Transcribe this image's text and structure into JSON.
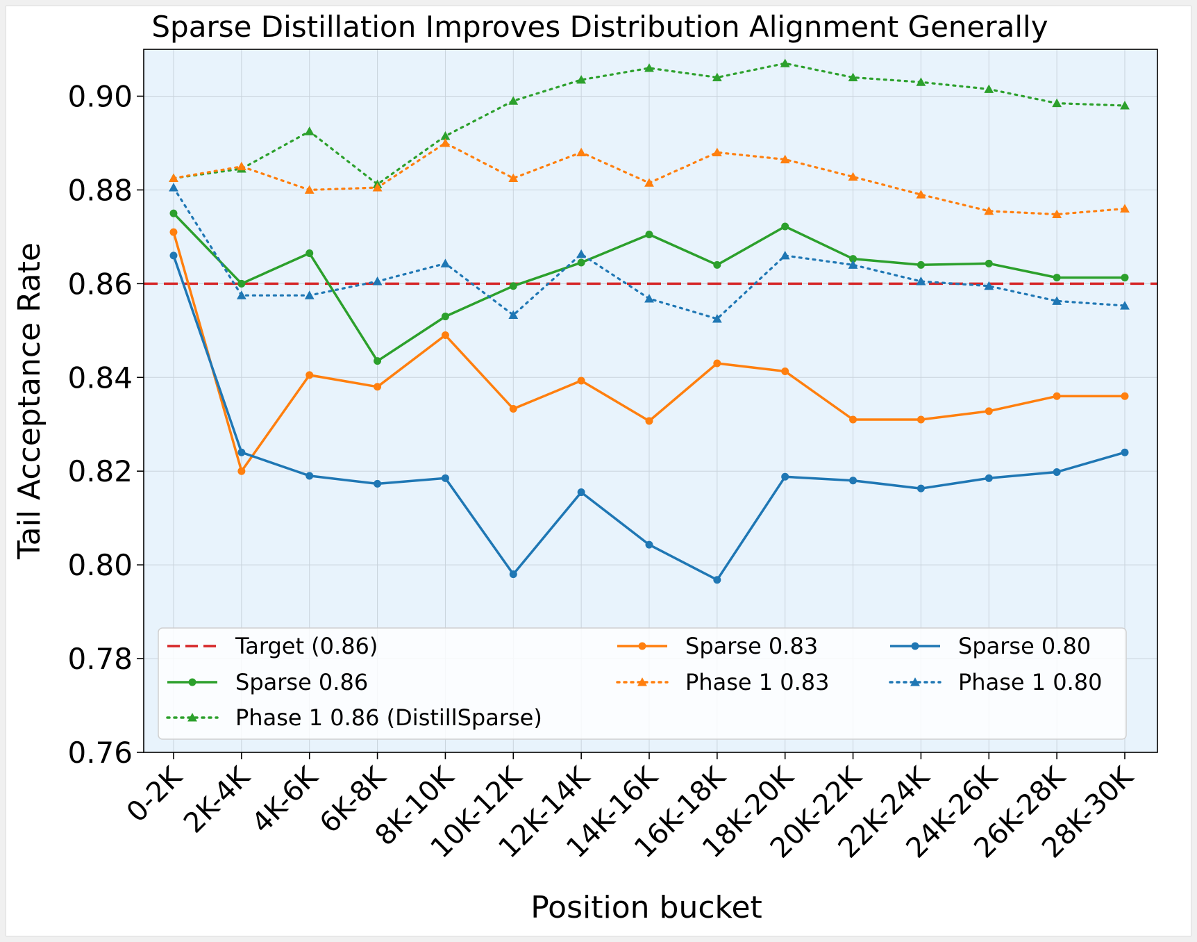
{
  "chart_data": {
    "type": "line",
    "title": "Sparse Distillation Improves Distribution Alignment Generally",
    "xlabel": "Position bucket",
    "ylabel": "Tail Acceptance Rate",
    "ylim": [
      0.76,
      0.91
    ],
    "yticks": [
      "0.76",
      "0.78",
      "0.80",
      "0.82",
      "0.84",
      "0.86",
      "0.88",
      "0.90"
    ],
    "grid": true,
    "legend_placement": "lower center, 3 columns",
    "categories": [
      "0-2K",
      "2K-4K",
      "4K-6K",
      "6K-8K",
      "8K-10K",
      "10K-12K",
      "12K-14K",
      "14K-16K",
      "16K-18K",
      "18K-20K",
      "20K-22K",
      "22K-24K",
      "24K-26K",
      "26K-28K",
      "28K-30K"
    ],
    "target": {
      "name": "Target (0.86)",
      "value": 0.86,
      "color": "#d62728",
      "style": "dashed"
    },
    "series": [
      {
        "name": "Sparse 0.86",
        "color": "#2ca02c",
        "style": "solid",
        "marker": "circle",
        "values": [
          0.875,
          0.86,
          0.8665,
          0.8435,
          0.853,
          0.8595,
          0.8645,
          0.8705,
          0.864,
          0.8722,
          0.8653,
          0.864,
          0.8643,
          0.8613,
          0.8613
        ]
      },
      {
        "name": "Phase 1 0.86 (DistillSparse)",
        "color": "#2ca02c",
        "style": "dotted",
        "marker": "triangle",
        "values": [
          0.8825,
          0.8845,
          0.8925,
          0.8812,
          0.8915,
          0.899,
          0.9035,
          0.906,
          0.904,
          0.907,
          0.904,
          0.903,
          0.9015,
          0.8985,
          0.898
        ]
      },
      {
        "name": "Sparse 0.83",
        "color": "#ff7f0e",
        "style": "solid",
        "marker": "circle",
        "values": [
          0.871,
          0.82,
          0.8405,
          0.838,
          0.849,
          0.8333,
          0.8393,
          0.8307,
          0.843,
          0.8413,
          0.831,
          0.831,
          0.8328,
          0.836,
          0.836
        ]
      },
      {
        "name": "Phase 1 0.83",
        "color": "#ff7f0e",
        "style": "dotted",
        "marker": "triangle",
        "values": [
          0.8825,
          0.885,
          0.88,
          0.8805,
          0.89,
          0.8825,
          0.888,
          0.8815,
          0.888,
          0.8865,
          0.8828,
          0.879,
          0.8755,
          0.8748,
          0.876
        ]
      },
      {
        "name": "Sparse 0.80",
        "color": "#1f77b4",
        "style": "solid",
        "marker": "circle",
        "values": [
          0.866,
          0.824,
          0.819,
          0.8173,
          0.8185,
          0.798,
          0.8155,
          0.8043,
          0.7968,
          0.8188,
          0.818,
          0.8163,
          0.8185,
          0.8198,
          0.824
        ]
      },
      {
        "name": "Phase 1 0.80",
        "color": "#1f77b4",
        "style": "dotted",
        "marker": "triangle",
        "values": [
          0.8805,
          0.8575,
          0.8575,
          0.8605,
          0.8643,
          0.8533,
          0.8663,
          0.8568,
          0.8525,
          0.866,
          0.864,
          0.8605,
          0.8595,
          0.8563,
          0.8553
        ]
      }
    ],
    "legend_order": [
      0,
      1,
      2,
      3,
      4,
      5,
      6
    ]
  }
}
